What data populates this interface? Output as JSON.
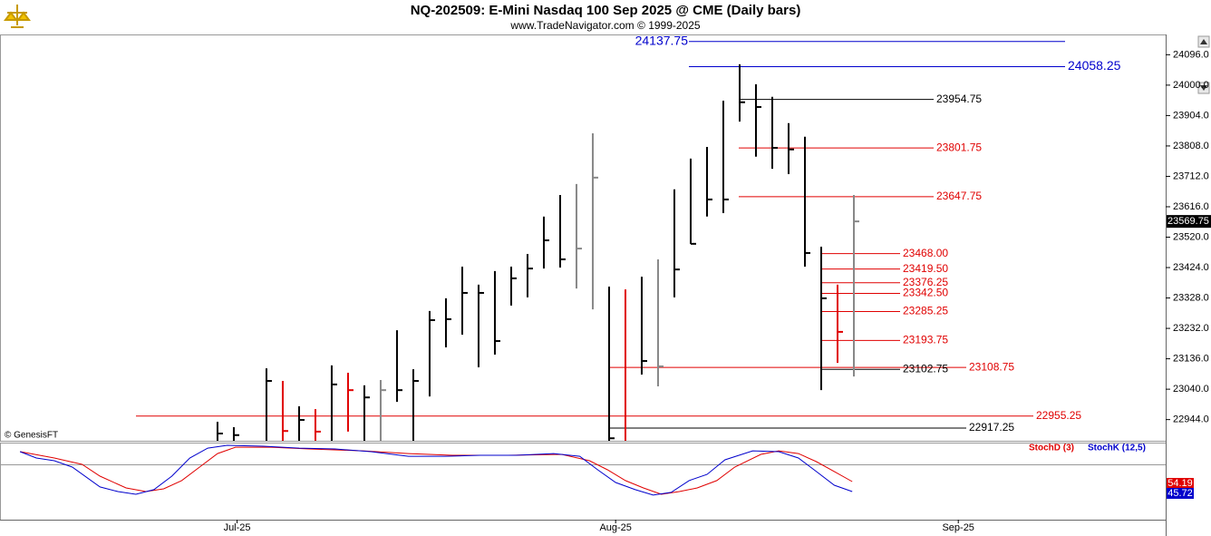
{
  "chart_data": [
    {
      "type": "ohlc",
      "title": "NQ-202509:  E-Mini Nasdaq 100 Sep 2025 @ CME  (Daily bars)",
      "subtitle": "www.TradeNavigator.com © 1999-2025",
      "watermark": "© GenesisFT",
      "x": [
        0,
        1,
        3,
        4,
        5,
        6,
        7,
        8,
        9,
        10,
        11,
        12,
        13,
        14,
        15,
        16,
        17,
        18,
        19,
        20,
        21,
        22,
        23,
        24,
        25,
        26,
        27,
        28,
        29,
        30,
        31,
        32,
        33,
        34,
        35,
        36,
        37,
        38,
        39
      ],
      "high": [
        22937,
        22920,
        23106,
        23066,
        22986,
        22977,
        23115,
        23092,
        23052,
        23069,
        23226,
        23103,
        23287,
        23327,
        23427,
        23370,
        23413,
        23427,
        23467,
        23585,
        23653,
        23688,
        23848,
        23364,
        23355,
        23395,
        23450,
        23671,
        23768,
        23805,
        23951,
        24066,
        24003,
        23963,
        23880,
        23837,
        23490,
        23370,
        23653
      ],
      "low": [
        22860,
        22860,
        22860,
        22860,
        22860,
        22860,
        22860,
        22906,
        22860,
        22860,
        23000,
        22860,
        23017,
        23172,
        23212,
        23109,
        23149,
        23304,
        23330,
        23421,
        23424,
        23358,
        23292,
        22860,
        22860,
        23086,
        23049,
        23330,
        23499,
        23585,
        23596,
        23885,
        23774,
        23736,
        23719,
        23427,
        23037,
        23123,
        23080
      ],
      "close": [
        22900,
        22895,
        23066,
        22908,
        22943,
        22906,
        23055,
        23037,
        23014,
        23037,
        23037,
        23066,
        23258,
        23261,
        23344,
        23344,
        23192,
        23390,
        23421,
        23510,
        23450,
        23484,
        23708,
        22885,
        22870,
        23129,
        23112,
        23418,
        23499,
        23639,
        23639,
        23946,
        23931,
        23802,
        23797,
        23470,
        23327,
        23221,
        23569.75
      ],
      "colors": [
        "#000000",
        "#000000",
        "#000000",
        "#e00000",
        "#000000",
        "#e00000",
        "#000000",
        "#e00000",
        "#000000",
        "#888888",
        "#000000",
        "#000000",
        "#000000",
        "#000000",
        "#000000",
        "#000000",
        "#000000",
        "#000000",
        "#000000",
        "#000000",
        "#000000",
        "#888888",
        "#888888",
        "#000000",
        "#e00000",
        "#000000",
        "#888888",
        "#000000",
        "#000000",
        "#000000",
        "#000000",
        "#000000",
        "#000000",
        "#000000",
        "#000000",
        "#000000",
        "#000000",
        "#e00000",
        "#888888"
      ],
      "xlim": [
        -13.33,
        58.11
      ],
      "xticks": [
        {
          "value": 1.2,
          "label": "Jul-25"
        },
        {
          "value": 24.4,
          "label": "Aug-25"
        },
        {
          "value": 45.4,
          "label": "Sep-25"
        }
      ],
      "ylim": [
        22880,
        24160
      ],
      "yticks": [
        {
          "value": 24096,
          "label": "24096.0"
        },
        {
          "value": 24000,
          "label": "24000.0"
        },
        {
          "value": 23904,
          "label": "23904.0"
        },
        {
          "value": 23808,
          "label": "23808.0"
        },
        {
          "value": 23712,
          "label": "23712.0"
        },
        {
          "value": 23616,
          "label": "23616.0"
        },
        {
          "value": 23520,
          "label": "23520.0"
        },
        {
          "value": 23424,
          "label": "23424.0"
        },
        {
          "value": 23328,
          "label": "23328.0"
        },
        {
          "value": 23232,
          "label": "23232.0"
        },
        {
          "value": 23136,
          "label": "23136.0"
        },
        {
          "value": 23040,
          "label": "23040.0"
        },
        {
          "value": 22944,
          "label": "22944.0"
        }
      ],
      "levels": [
        24137.75,
        24058.25,
        23954.75,
        23801.75,
        23647.75,
        {
          "value": 23468,
          "label": "23468.00"
        },
        {
          "value": 23419.5,
          "label": "23419.50"
        },
        23376.25,
        {
          "value": 23342.5,
          "label": "23342.50"
        },
        23285.25,
        23193.75,
        23102.75,
        23108.75,
        22955.25,
        22917.25
      ],
      "level_colors": [
        "#0000cc",
        "#0000cc",
        "#000000",
        "#e00000",
        "#e00000",
        "#e00000",
        "#e00000",
        "#e00000",
        "#e00000",
        "#e00000",
        "#e00000",
        "#000000",
        "#e00000",
        "#e00000",
        "#000000"
      ]
    },
    {
      "type": "line",
      "ylim": [
        22.6,
        87.3
      ],
      "series": [
        {
          "name": "StochD (3)",
          "color": "#e00000",
          "x": [
            -12.1,
            -10,
            -8.3,
            -7.2,
            -5.6,
            -4.4,
            -3.3,
            -2.2,
            -1.1,
            0,
            1.1,
            3.3,
            5.6,
            8.9,
            11.7,
            14.4,
            17.8,
            21.1,
            22.8,
            23.9,
            25,
            26.1,
            27.2,
            28.3,
            29.4,
            30.6,
            31.7,
            33.3,
            34.4,
            35.6,
            36.7,
            37.8,
            38.9
          ],
          "values": [
            79.6,
            74.2,
            68.8,
            58.8,
            48.8,
            45.7,
            48.0,
            55.0,
            66.5,
            78.0,
            83.4,
            83.4,
            81.9,
            80.3,
            78.0,
            76.5,
            76.5,
            77.3,
            71.9,
            64.2,
            55.0,
            48.8,
            43.4,
            45.7,
            48.8,
            55.0,
            66.5,
            77.3,
            80.3,
            78.0,
            71.1,
            62.7,
            54.19
          ]
        },
        {
          "name": "StochK (12,5)",
          "color": "#0000cc",
          "x": [
            -12.1,
            -11.1,
            -10,
            -8.9,
            -7.2,
            -6.1,
            -5,
            -3.9,
            -2.8,
            -1.7,
            -0.6,
            0.6,
            2.8,
            5,
            7.2,
            9.4,
            11.7,
            13.9,
            16.1,
            18.3,
            20.6,
            22.2,
            23.3,
            24.4,
            25.6,
            26.7,
            27.8,
            28.9,
            30,
            31.1,
            32.8,
            34.4,
            35.6,
            36.7,
            37.8,
            38.9
          ],
          "values": [
            79.6,
            74.2,
            71.9,
            66.5,
            49.6,
            45.7,
            43.4,
            47.3,
            58.8,
            74.2,
            82.6,
            85.0,
            84.2,
            82.6,
            81.9,
            79.6,
            75.7,
            75.7,
            76.5,
            76.5,
            78.0,
            75.7,
            64.2,
            53.4,
            47.3,
            42.7,
            45.0,
            55.0,
            60.3,
            72.7,
            80.3,
            79.6,
            74.2,
            62.7,
            51.1,
            45.72
          ]
        }
      ]
    }
  ]
}
